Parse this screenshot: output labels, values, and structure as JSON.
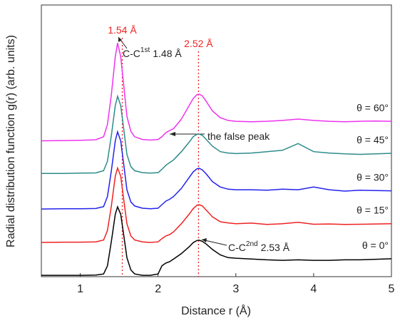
{
  "chart_data": {
    "type": "line",
    "xlabel": "Distance r (Å)",
    "ylabel": "Radial distribution function g(r) (arb. units)",
    "xlim": [
      0.5,
      5
    ],
    "xticks": [
      1,
      2,
      3,
      4,
      5
    ],
    "ylim": [
      0,
      10
    ],
    "x": [
      0.5,
      0.8,
      1.0,
      1.2,
      1.3,
      1.35,
      1.4,
      1.45,
      1.48,
      1.52,
      1.56,
      1.6,
      1.65,
      1.7,
      1.8,
      1.9,
      2.0,
      2.05,
      2.1,
      2.15,
      2.2,
      2.3,
      2.4,
      2.45,
      2.5,
      2.53,
      2.57,
      2.62,
      2.7,
      2.8,
      2.9,
      3.0,
      3.2,
      3.4,
      3.6,
      3.8,
      4.0,
      4.2,
      4.4,
      4.6,
      4.8,
      5.0
    ],
    "series": [
      {
        "name": "θ = 0°",
        "color": "#000000",
        "values": [
          0.05,
          0.05,
          0.05,
          0.06,
          0.1,
          0.4,
          1.3,
          2.3,
          2.57,
          2.3,
          1.5,
          0.7,
          0.25,
          0.1,
          0.05,
          0.05,
          0.1,
          0.4,
          0.5,
          0.55,
          0.65,
          0.85,
          1.1,
          1.25,
          1.33,
          1.34,
          1.3,
          1.2,
          1.0,
          0.8,
          0.7,
          0.68,
          0.65,
          0.62,
          0.6,
          0.62,
          0.6,
          0.6,
          0.62,
          0.62,
          0.64,
          0.66
        ]
      },
      {
        "name": "θ = 15°",
        "color": "#ee2222",
        "values": [
          1.26,
          1.27,
          1.27,
          1.28,
          1.35,
          1.7,
          2.6,
          3.7,
          4.0,
          3.7,
          2.8,
          1.95,
          1.5,
          1.35,
          1.28,
          1.26,
          1.28,
          1.4,
          1.5,
          1.55,
          1.65,
          1.95,
          2.3,
          2.5,
          2.63,
          2.65,
          2.6,
          2.45,
          2.2,
          2.02,
          1.98,
          1.95,
          1.97,
          1.92,
          1.95,
          2.0,
          1.93,
          1.94,
          1.92,
          1.93,
          1.94,
          1.95
        ]
      },
      {
        "name": "θ = 30°",
        "color": "#2222ee",
        "values": [
          2.49,
          2.5,
          2.5,
          2.51,
          2.58,
          2.95,
          3.9,
          5.0,
          5.33,
          5.0,
          4.1,
          3.2,
          2.75,
          2.6,
          2.52,
          2.5,
          2.52,
          2.65,
          2.78,
          2.85,
          2.95,
          3.25,
          3.65,
          3.85,
          3.97,
          3.99,
          3.93,
          3.78,
          3.5,
          3.3,
          3.22,
          3.2,
          3.2,
          3.18,
          3.22,
          3.2,
          3.3,
          3.2,
          3.15,
          3.18,
          3.17,
          3.16
        ]
      },
      {
        "name": "θ = 45°",
        "color": "#2e8b8b",
        "values": [
          3.8,
          3.8,
          3.81,
          3.82,
          3.9,
          4.25,
          5.2,
          6.3,
          6.64,
          6.3,
          5.4,
          4.5,
          4.05,
          3.9,
          3.83,
          3.81,
          3.83,
          3.95,
          4.1,
          4.2,
          4.3,
          4.6,
          4.95,
          5.15,
          5.24,
          5.25,
          5.2,
          5.05,
          4.8,
          4.6,
          4.55,
          4.53,
          4.55,
          4.6,
          4.65,
          4.9,
          4.6,
          4.55,
          4.52,
          4.5,
          4.52,
          4.54
        ]
      },
      {
        "name": "θ = 60°",
        "color": "#ee33ee",
        "values": [
          5.0,
          5.01,
          5.02,
          5.04,
          5.15,
          5.6,
          6.7,
          8.1,
          8.6,
          8.1,
          7.0,
          5.9,
          5.35,
          5.15,
          5.05,
          5.03,
          5.05,
          5.15,
          5.3,
          5.38,
          5.45,
          5.8,
          6.3,
          6.55,
          6.7,
          6.72,
          6.65,
          6.45,
          6.1,
          5.85,
          5.75,
          5.72,
          5.7,
          5.72,
          5.75,
          5.8,
          5.75,
          5.72,
          5.7,
          5.72,
          5.73,
          5.72
        ]
      }
    ],
    "vlines": [
      {
        "x": 1.54,
        "label": "1.54 Å",
        "color": "#ee2222"
      },
      {
        "x": 2.52,
        "label": "2.52 Å",
        "color": "#ee2222"
      }
    ],
    "annotations": [
      {
        "text": "C-C",
        "sup": "1st",
        "value_text": "1.48 Å"
      },
      {
        "text": "the false peak"
      },
      {
        "text": "C-C",
        "sup": "2nd",
        "value_text": "2.53 Å"
      }
    ]
  }
}
